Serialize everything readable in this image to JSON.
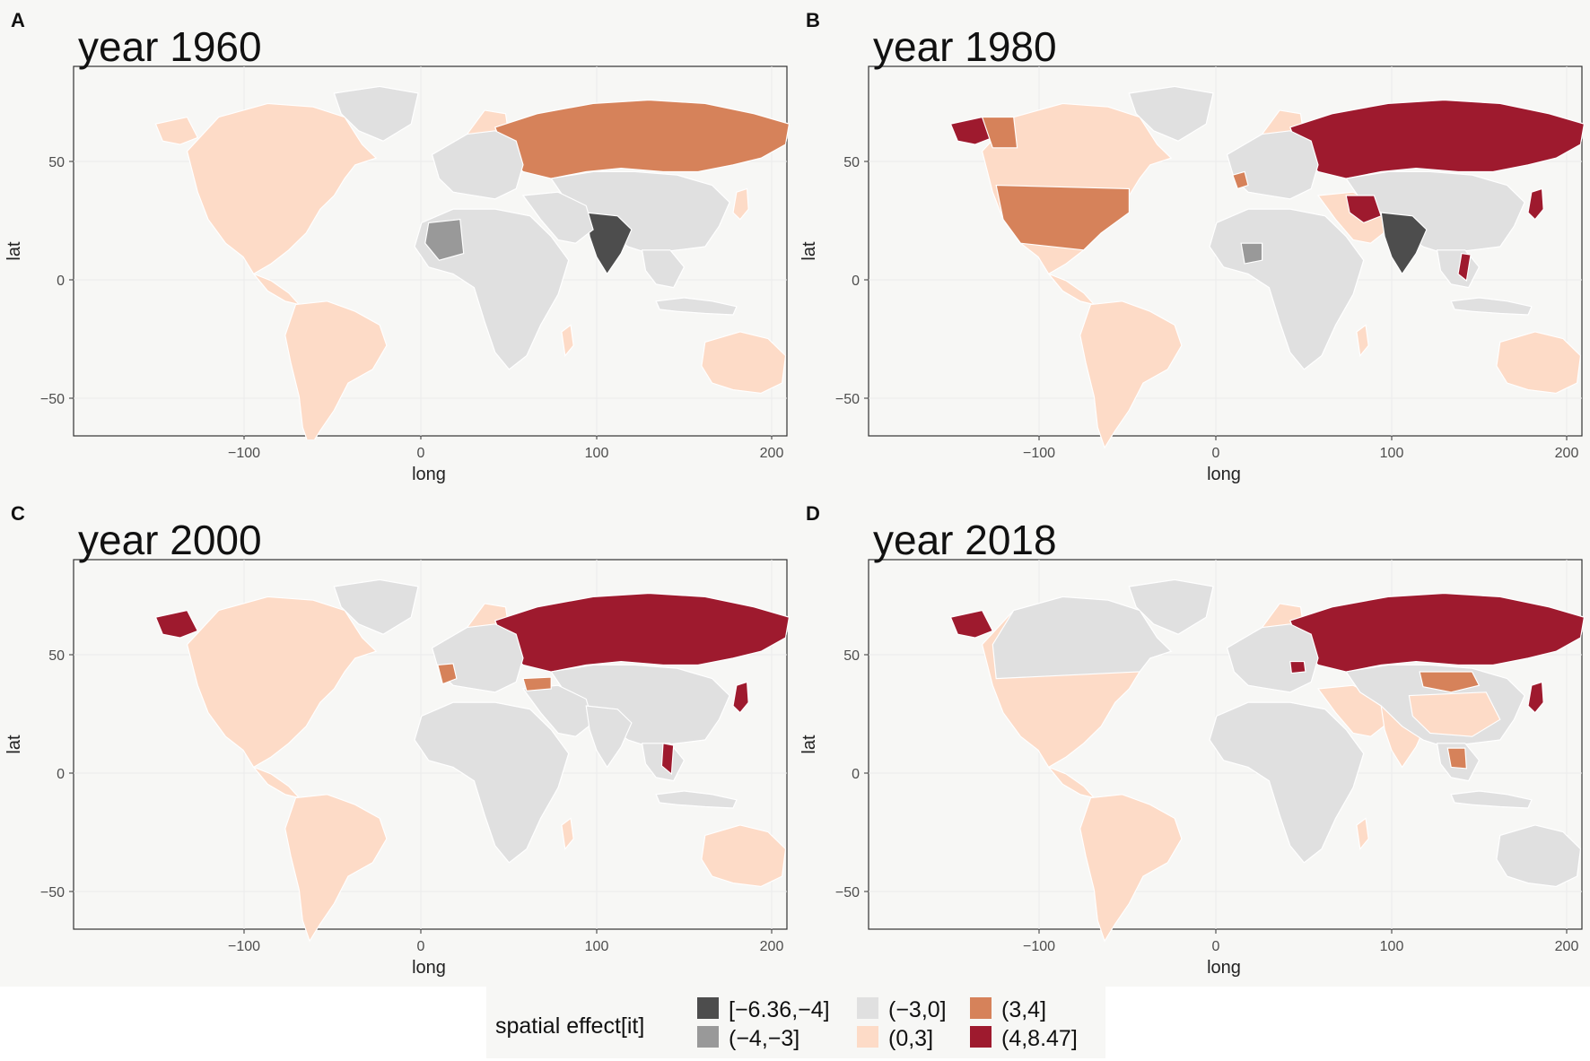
{
  "panels": [
    {
      "letter": "A",
      "title": "year 1960"
    },
    {
      "letter": "B",
      "title": "year 1980"
    },
    {
      "letter": "C",
      "title": "year 2000"
    },
    {
      "letter": "D",
      "title": "year 2018"
    }
  ],
  "axes": {
    "xlabel": "long",
    "ylabel": "lat",
    "xticks": [
      "−100",
      "0",
      "100",
      "200"
    ],
    "yticks": [
      "50",
      "0",
      "−50"
    ]
  },
  "legend": {
    "title": "spatial effect[it]",
    "items": [
      {
        "label": "[−6.36,−4]",
        "color": "#4d4d4d"
      },
      {
        "label": "(−4,−3]",
        "color": "#999999"
      },
      {
        "label": "(−3,0]",
        "color": "#e0e0e0"
      },
      {
        "label": "(0,3]",
        "color": "#fddbc7"
      },
      {
        "label": "(3,4]",
        "color": "#d6825a"
      },
      {
        "label": "(4,8.47]",
        "color": "#9e1a2e"
      }
    ]
  },
  "colors": {
    "panel_background": "#f7f7f5",
    "plot_border": "#333333",
    "grid": "#ebebeb",
    "country_border": "#ffffff"
  }
}
